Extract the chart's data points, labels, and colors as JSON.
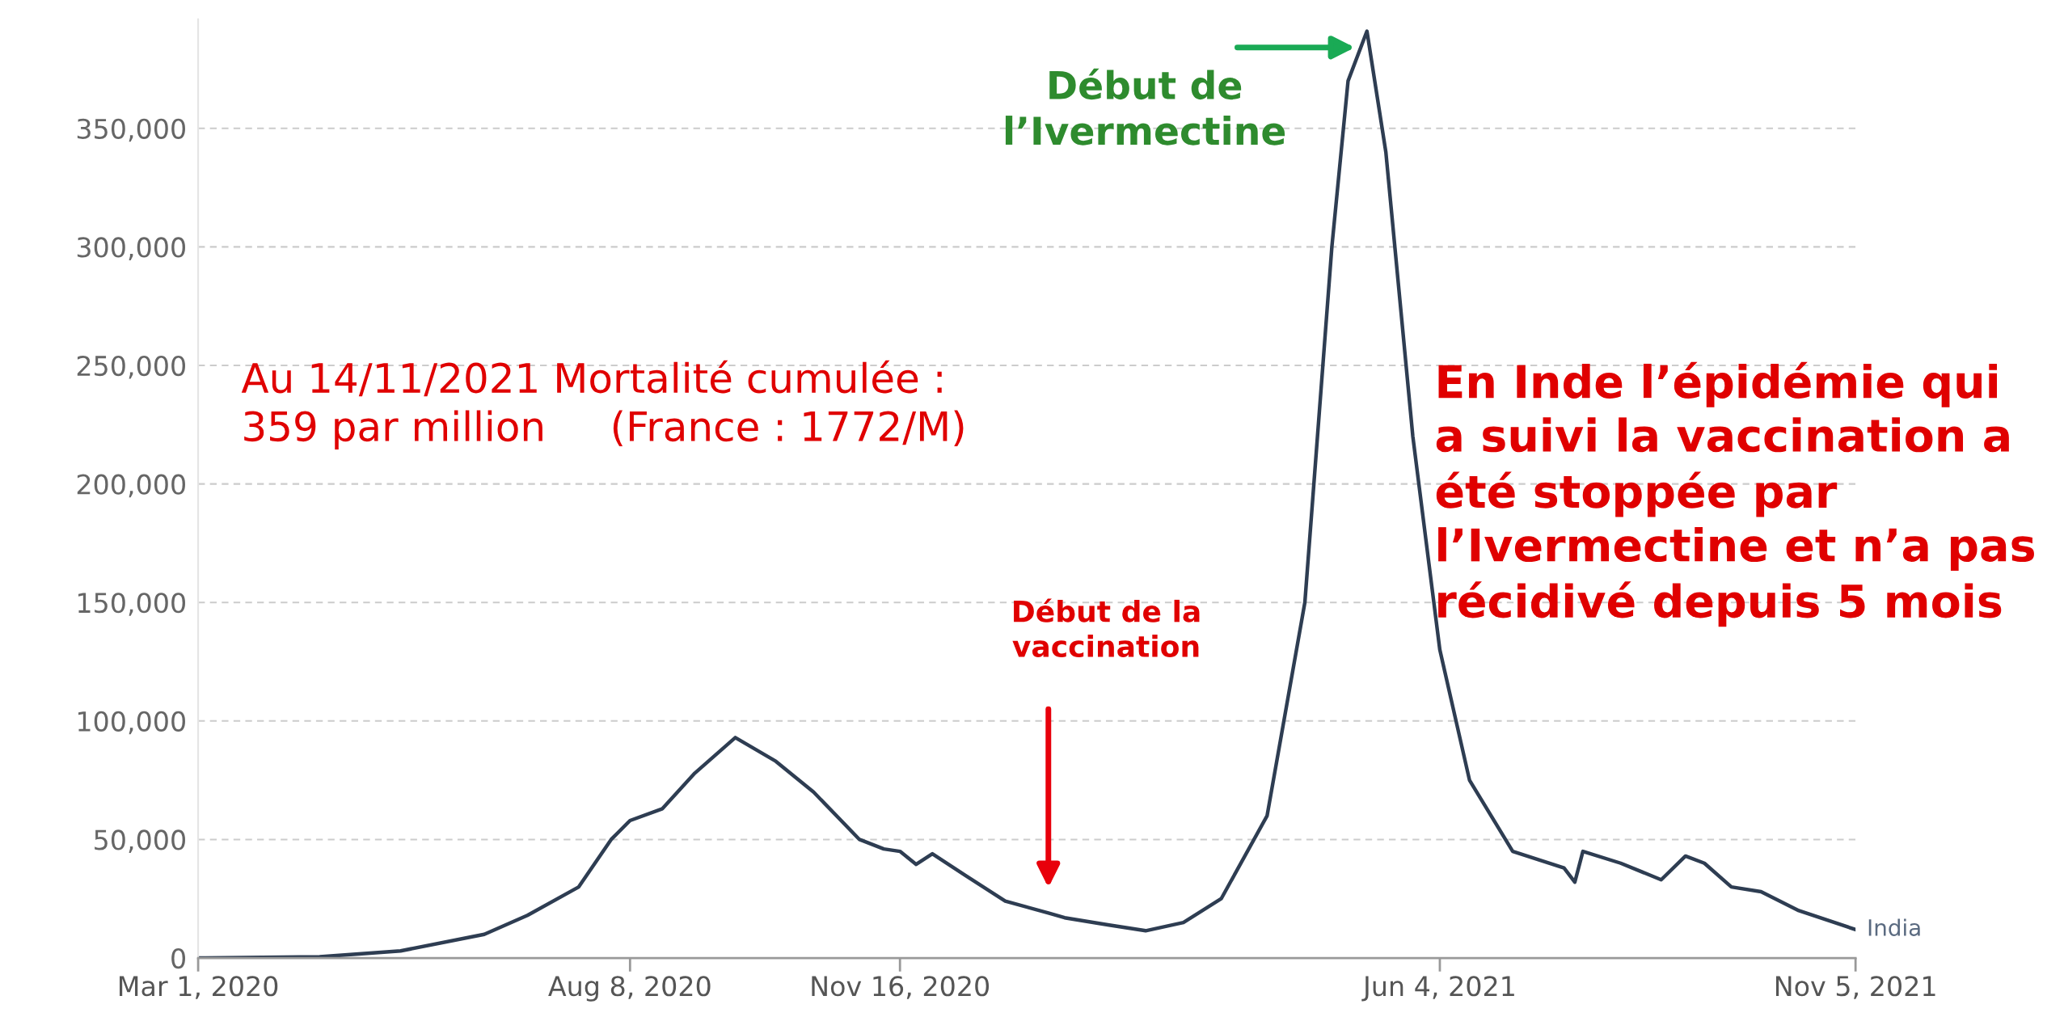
{
  "chart_data": {
    "type": "line",
    "x": [
      "2020-03-01",
      "2020-04-15",
      "2020-05-15",
      "2020-06-15",
      "2020-07-01",
      "2020-07-20",
      "2020-08-01",
      "2020-08-08",
      "2020-08-20",
      "2020-09-01",
      "2020-09-16",
      "2020-10-01",
      "2020-10-15",
      "2020-11-01",
      "2020-11-10",
      "2020-11-16",
      "2020-11-22",
      "2020-11-28",
      "2020-12-10",
      "2020-12-25",
      "2021-01-10",
      "2021-01-16",
      "2021-02-01",
      "2021-02-15",
      "2021-03-01",
      "2021-03-15",
      "2021-04-01",
      "2021-04-15",
      "2021-04-25",
      "2021-05-01",
      "2021-05-08",
      "2021-05-15",
      "2021-05-25",
      "2021-06-04",
      "2021-06-15",
      "2021-07-01",
      "2021-07-20",
      "2021-07-24",
      "2021-07-27",
      "2021-08-10",
      "2021-08-25",
      "2021-09-03",
      "2021-09-10",
      "2021-09-20",
      "2021-10-01",
      "2021-10-15",
      "2021-11-05"
    ],
    "series": [
      {
        "name": "India",
        "color": "#2e3d52",
        "values": [
          0,
          500,
          3000,
          10000,
          18000,
          30000,
          50000,
          58000,
          63000,
          78000,
          93000,
          83000,
          70000,
          50000,
          46000,
          45000,
          39500,
          44000,
          35000,
          24000,
          19000,
          17000,
          14000,
          11500,
          15000,
          25000,
          60000,
          150000,
          300000,
          370000,
          391000,
          340000,
          220000,
          130000,
          75000,
          45000,
          38000,
          32000,
          45000,
          40000,
          33000,
          43000,
          40000,
          30000,
          28000,
          20000,
          12000
        ]
      }
    ],
    "xlim": [
      "2020-03-01",
      "2021-11-05"
    ],
    "xticks": [
      {
        "value": "2020-03-01",
        "label": "Mar 1, 2020"
      },
      {
        "value": "2020-08-08",
        "label": "Aug 8, 2020"
      },
      {
        "value": "2020-11-16",
        "label": "Nov 16, 2020"
      },
      {
        "value": "2021-06-04",
        "label": "Jun 4, 2021"
      },
      {
        "value": "2021-11-05",
        "label": "Nov 5, 2021"
      }
    ],
    "ylim": [
      0,
      396000
    ],
    "yticks": [
      {
        "value": 0,
        "label": "0"
      },
      {
        "value": 50000,
        "label": "50,000"
      },
      {
        "value": 100000,
        "label": "100,000"
      },
      {
        "value": 150000,
        "label": "150,000"
      },
      {
        "value": 200000,
        "label": "200,000"
      },
      {
        "value": 250000,
        "label": "250,000"
      },
      {
        "value": 300000,
        "label": "300,000"
      },
      {
        "value": 350000,
        "label": "350,000"
      }
    ],
    "grid": "y",
    "annotations": [
      "Début de\nl’Ivermectine",
      "Début de la\nvaccination",
      "Au 14/11/2021 Mortalité cumulée :\n359 par million     (France : 1772/M)",
      "En Inde l’épidémie qui\na suivi la vaccination a\nété stoppée par\nl’Ivermectine et n’a pas\nrécidivé depuis 5 mois"
    ]
  }
}
